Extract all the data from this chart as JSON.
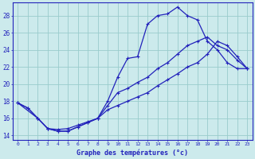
{
  "xlabel": "Graphe des températures (°c)",
  "bg_color": "#cceaec",
  "line_color": "#2222bb",
  "grid_color": "#99cccc",
  "xlim": [
    -0.5,
    23.5
  ],
  "ylim": [
    13.5,
    29.5
  ],
  "yticks": [
    14,
    16,
    18,
    20,
    22,
    24,
    26,
    28
  ],
  "xticks": [
    0,
    1,
    2,
    3,
    4,
    5,
    6,
    7,
    8,
    9,
    10,
    11,
    12,
    13,
    14,
    15,
    16,
    17,
    18,
    19,
    20,
    21,
    22,
    23
  ],
  "line1_x": [
    0,
    1,
    2,
    3,
    4,
    5,
    6,
    7,
    8,
    9,
    10,
    11,
    12,
    13,
    14,
    15,
    16,
    17,
    18,
    19,
    20,
    21,
    22,
    23
  ],
  "line1_y": [
    17.8,
    17.2,
    16.0,
    14.8,
    14.7,
    14.8,
    15.2,
    15.6,
    16.0,
    18.0,
    20.8,
    23.0,
    23.2,
    27.0,
    28.0,
    28.2,
    29.0,
    28.0,
    27.5,
    25.0,
    24.0,
    22.5,
    21.8,
    21.8
  ],
  "line2_x": [
    0,
    1,
    2,
    3,
    4,
    5,
    6,
    7,
    8,
    9,
    10,
    11,
    12,
    13,
    14,
    15,
    16,
    17,
    18,
    19,
    20,
    21,
    22,
    23
  ],
  "line2_y": [
    17.8,
    17.2,
    16.0,
    14.8,
    14.5,
    14.5,
    15.0,
    15.5,
    16.0,
    17.5,
    19.0,
    19.5,
    20.2,
    20.8,
    21.8,
    22.5,
    23.5,
    24.5,
    25.0,
    25.5,
    24.5,
    24.0,
    22.8,
    21.8
  ],
  "line3_x": [
    0,
    2,
    3,
    4,
    5,
    6,
    7,
    8,
    9,
    10,
    11,
    12,
    13,
    14,
    15,
    16,
    17,
    18,
    19,
    20,
    21,
    22,
    23
  ],
  "line3_y": [
    17.8,
    16.0,
    14.8,
    14.5,
    14.5,
    15.0,
    15.5,
    16.0,
    17.0,
    17.5,
    18.0,
    18.5,
    19.0,
    19.8,
    20.5,
    21.2,
    22.0,
    22.5,
    23.5,
    25.0,
    24.5,
    23.2,
    21.8
  ]
}
